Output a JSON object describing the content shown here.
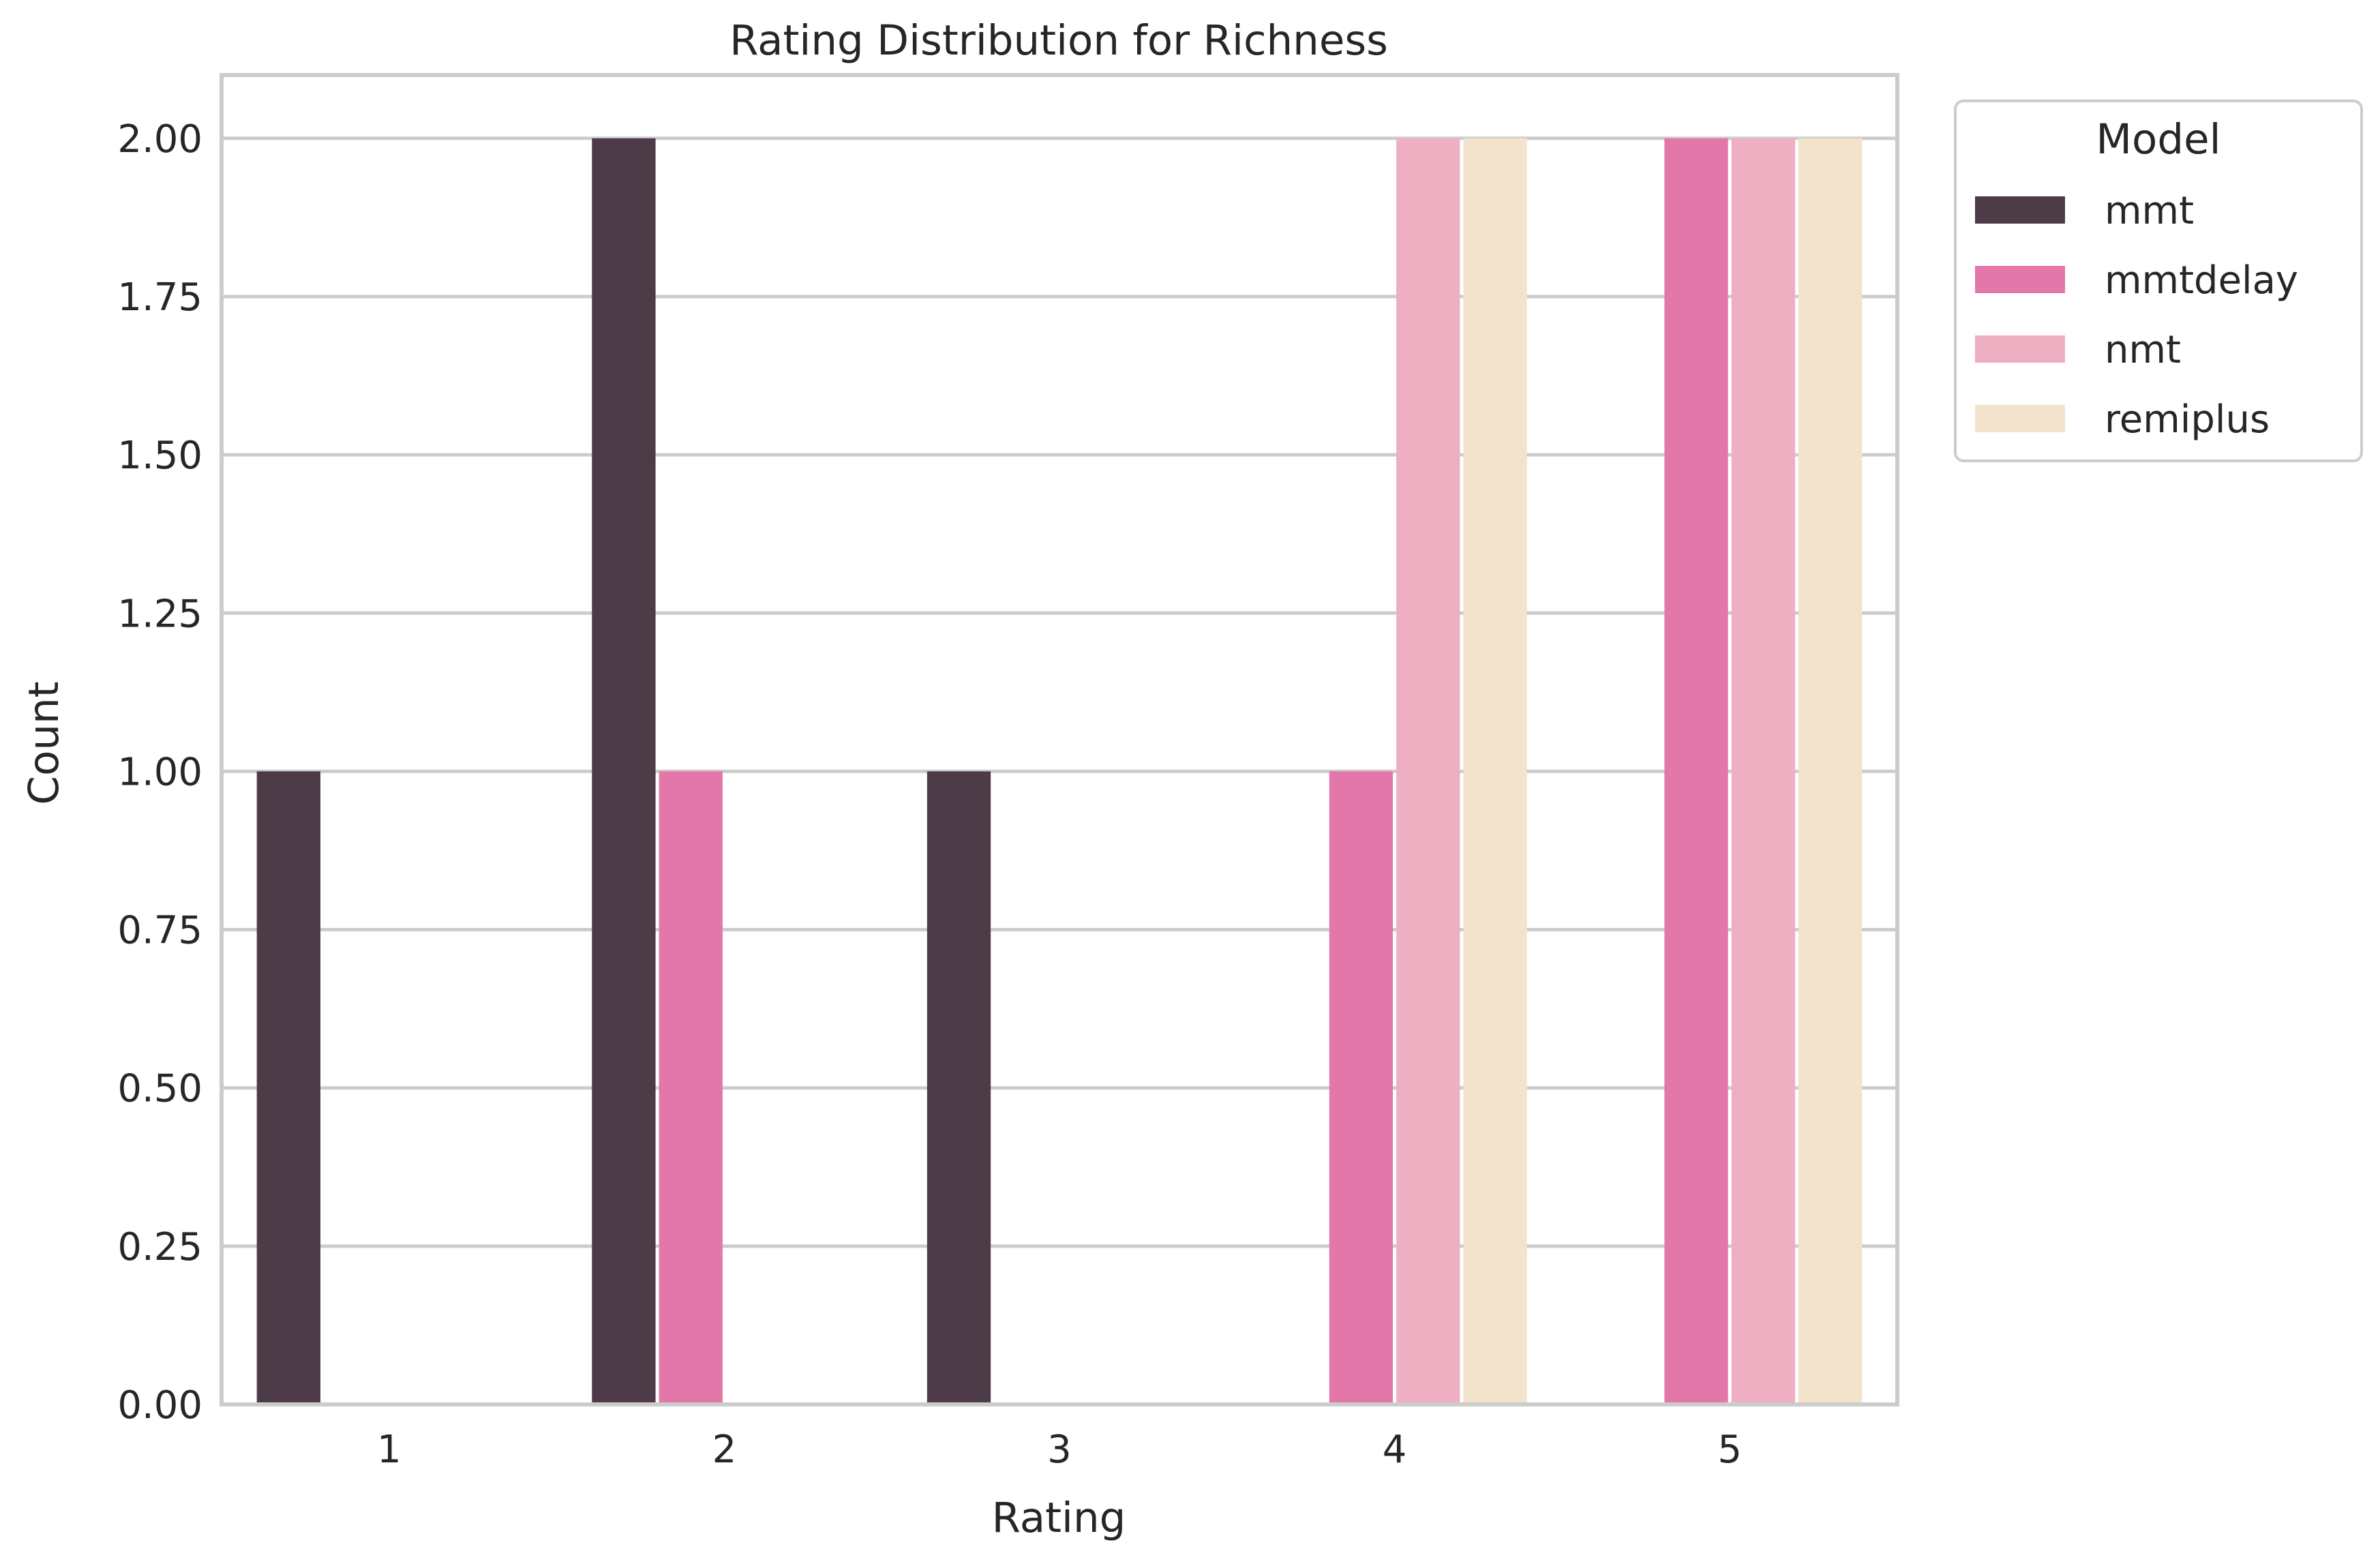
{
  "chart_data": {
    "type": "bar",
    "title": "Rating Distribution for Richness",
    "xlabel": "Rating",
    "ylabel": "Count",
    "categories": [
      "1",
      "2",
      "3",
      "4",
      "5"
    ],
    "ylim": [
      0,
      2.1
    ],
    "yticks": [
      "0.00",
      "0.25",
      "0.50",
      "0.75",
      "1.00",
      "1.25",
      "1.50",
      "1.75",
      "2.00"
    ],
    "grid": true,
    "legend": {
      "title": "Model",
      "placement": "upper-right-outside"
    },
    "series": [
      {
        "name": "mmt",
        "color": "#4e3b48",
        "values": [
          1,
          2,
          1,
          0,
          0
        ]
      },
      {
        "name": "mmtdelay",
        "color": "#e377a9",
        "values": [
          0,
          1,
          0,
          1,
          2
        ]
      },
      {
        "name": "nmt",
        "color": "#eeafc2",
        "values": [
          0,
          0,
          0,
          2,
          2
        ]
      },
      {
        "name": "remiplus",
        "color": "#f3e2cc",
        "values": [
          0,
          0,
          0,
          2,
          2
        ]
      }
    ]
  }
}
